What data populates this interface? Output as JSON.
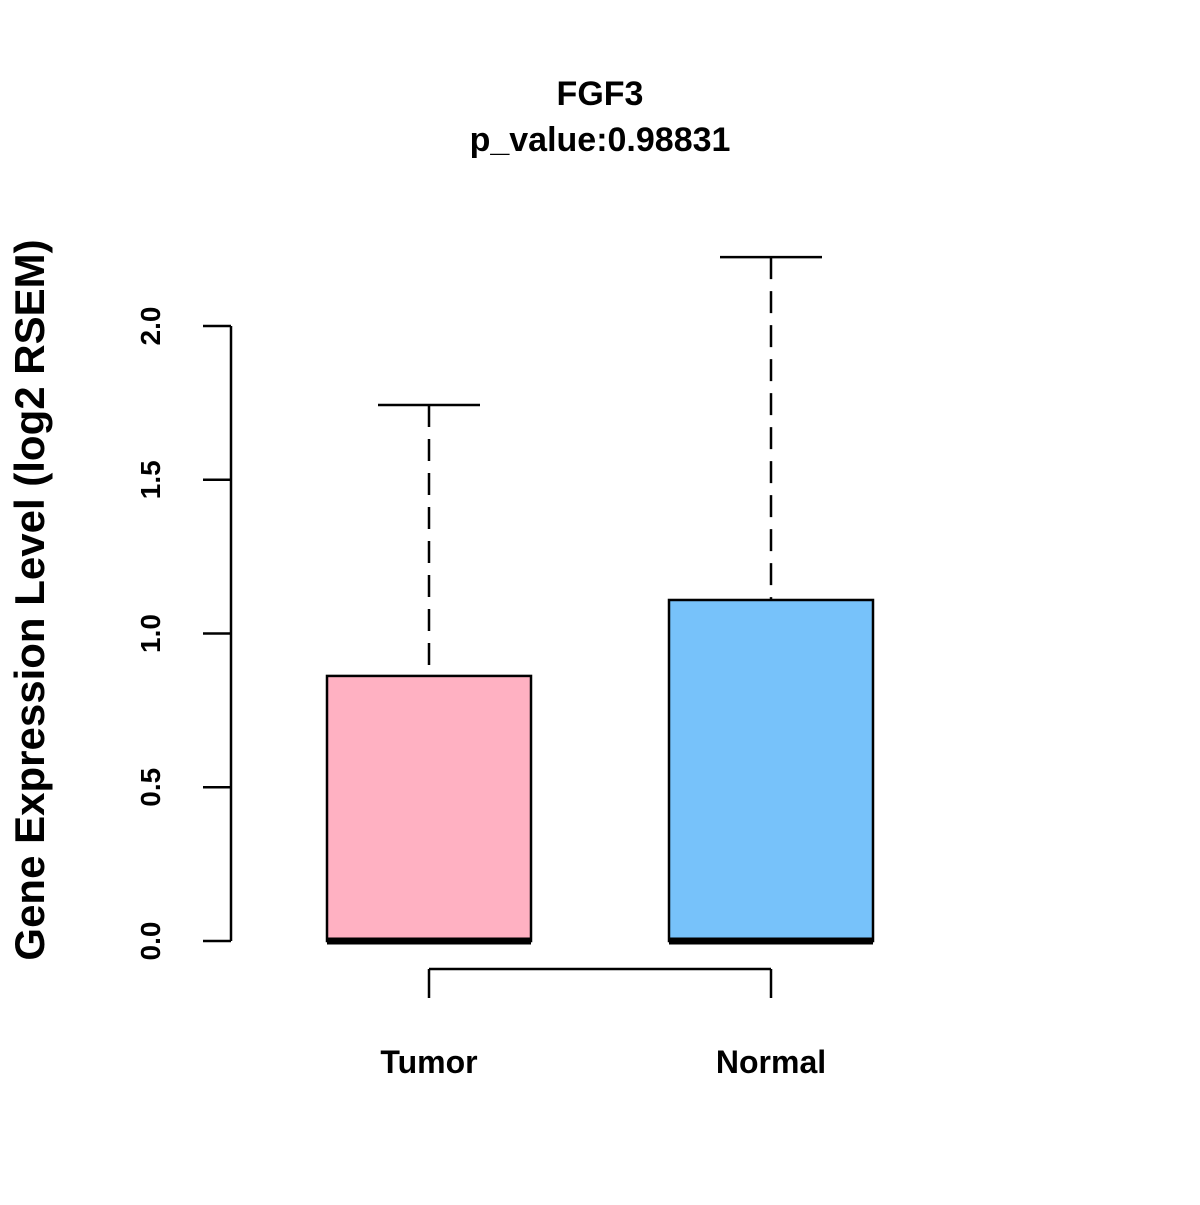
{
  "chart_data": {
    "type": "boxplot",
    "title": "FGF3",
    "subtitle": "p_value:0.98831",
    "xlabel": "",
    "ylabel": "Gene Expression Level (log2 RSEM)",
    "ylim": [
      0,
      2.0
    ],
    "yticks": [
      0,
      0.5,
      1.0,
      1.5,
      2.0
    ],
    "ytick_labels": [
      "0.0",
      "0.5",
      "1.0",
      "1.5",
      "2.0"
    ],
    "grid": false,
    "categories": [
      "Tumor",
      "Normal"
    ],
    "series": [
      {
        "name": "Tumor",
        "min": 0,
        "q1": 0,
        "median": 0,
        "q3": 0.862,
        "max": 1.743,
        "color": "#FFB1C2"
      },
      {
        "name": "Normal",
        "min": 0,
        "q1": 0,
        "median": 0,
        "q3": 1.109,
        "max": 2.224,
        "color": "#77C2FA"
      }
    ]
  }
}
